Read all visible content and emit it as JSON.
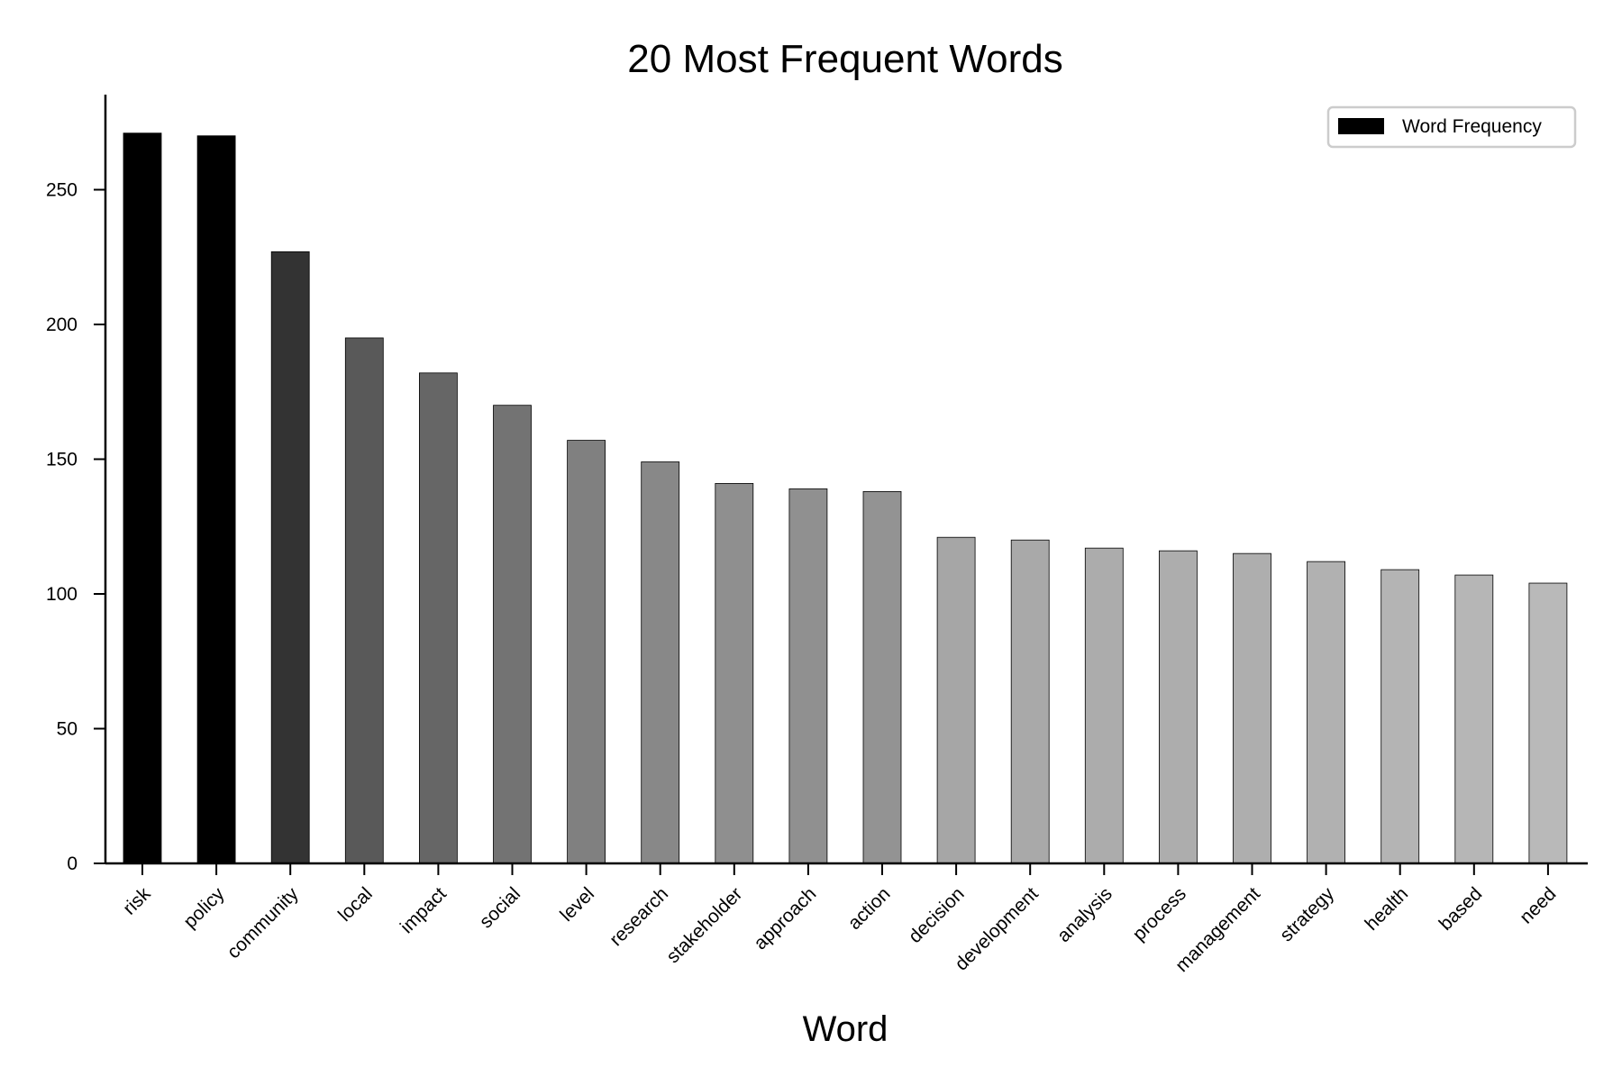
{
  "chart_data": {
    "type": "bar",
    "title": "20 Most Frequent Words",
    "xlabel": "Word",
    "ylabel": "",
    "ylim": [
      0,
      285
    ],
    "yticks": [
      0,
      50,
      100,
      150,
      200,
      250
    ],
    "categories": [
      "risk",
      "policy",
      "community",
      "local",
      "impact",
      "social",
      "level",
      "research",
      "stakeholder",
      "approach",
      "action",
      "decision",
      "development",
      "analysis",
      "process",
      "management",
      "strategy",
      "health",
      "based",
      "need"
    ],
    "series": [
      {
        "name": "Word Frequency",
        "values": [
          271,
          270,
          227,
          195,
          182,
          170,
          157,
          149,
          141,
          139,
          138,
          121,
          120,
          117,
          116,
          115,
          112,
          109,
          107,
          104
        ]
      }
    ],
    "bar_colors": [
      "#000000",
      "#000000",
      "#333333",
      "#595959",
      "#666666",
      "#737373",
      "#808080",
      "#888888",
      "#8f8f8f",
      "#909090",
      "#939393",
      "#a6a6a6",
      "#a9a9a9",
      "#acacac",
      "#adadad",
      "#aeaeae",
      "#b1b1b1",
      "#b4b4b4",
      "#b6b6b6",
      "#b9b9b9"
    ],
    "legend": {
      "position": "top-right",
      "entries": [
        {
          "label": "Word Frequency",
          "color": "#000000"
        }
      ]
    },
    "grid": false
  }
}
